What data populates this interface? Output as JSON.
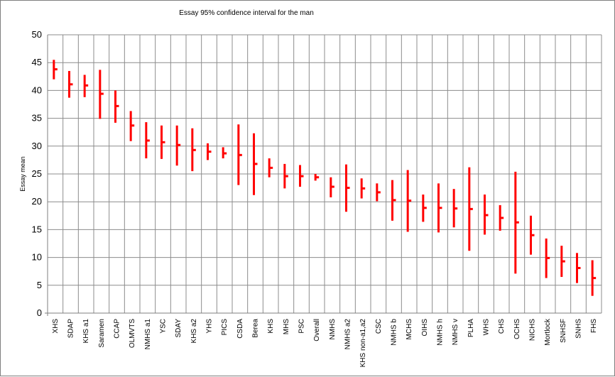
{
  "chart_data": {
    "type": "stock",
    "title": "Essay 95% confidence interval for the man",
    "xlabel": "",
    "ylabel": "Essay mean",
    "ylim": [
      0,
      50
    ],
    "yticks": [
      0,
      5,
      10,
      15,
      20,
      25,
      30,
      35,
      40,
      45,
      50
    ],
    "grid": true,
    "legend": "none",
    "bar_color": "#ff0000",
    "categories": [
      "XHS",
      "SDAP",
      "KHS a1",
      "Saramen",
      "CCAP",
      "OLMVTS",
      "NMHS a1",
      "YSC",
      "SDAY",
      "KHS a2",
      "YHS",
      "PICS",
      "CSDA",
      "Berea",
      "KHS",
      "MHS",
      "PSC",
      "Overall",
      "NMHS",
      "NMHS a2",
      "KHS non-a1,a2",
      "CSC",
      "NMHS b",
      "MCHS",
      "OIHS",
      "NMHS h",
      "NMHS v",
      "PLHA",
      "WHS",
      "CHS",
      "OCHS",
      "NICHS",
      "Mortlock",
      "SNHSF",
      "SNHS",
      "FHS"
    ],
    "series": [
      {
        "role": "high",
        "values": [
          45.5,
          43.5,
          42.8,
          43.7,
          40.0,
          36.3,
          34.3,
          33.7,
          33.7,
          33.2,
          30.5,
          29.8,
          33.9,
          32.3,
          27.8,
          26.8,
          26.6,
          25.0,
          24.4,
          26.7,
          24.2,
          23.3,
          23.9,
          25.7,
          21.3,
          23.3,
          22.3,
          26.2,
          21.3,
          19.4,
          25.4,
          17.5,
          13.4,
          12.1,
          10.8,
          9.5
        ]
      },
      {
        "role": "mean",
        "values": [
          43.8,
          41.1,
          40.9,
          39.4,
          37.2,
          33.7,
          31.0,
          30.7,
          30.2,
          29.3,
          29.0,
          28.7,
          28.4,
          26.8,
          26.1,
          24.6,
          24.6,
          24.4,
          22.7,
          22.5,
          22.4,
          21.7,
          20.3,
          20.2,
          18.9,
          18.9,
          18.8,
          18.7,
          17.6,
          17.1,
          16.3,
          14.0,
          9.9,
          9.3,
          8.1,
          6.3
        ]
      },
      {
        "role": "low",
        "values": [
          42.0,
          38.7,
          38.8,
          34.9,
          34.2,
          30.9,
          27.8,
          27.7,
          26.5,
          25.5,
          27.5,
          27.8,
          23.0,
          21.2,
          24.4,
          22.4,
          22.7,
          23.8,
          20.8,
          18.2,
          20.6,
          20.1,
          16.6,
          14.6,
          16.4,
          14.5,
          15.4,
          11.2,
          14.1,
          14.8,
          7.1,
          10.5,
          6.3,
          6.5,
          5.4,
          3.1
        ]
      }
    ]
  }
}
